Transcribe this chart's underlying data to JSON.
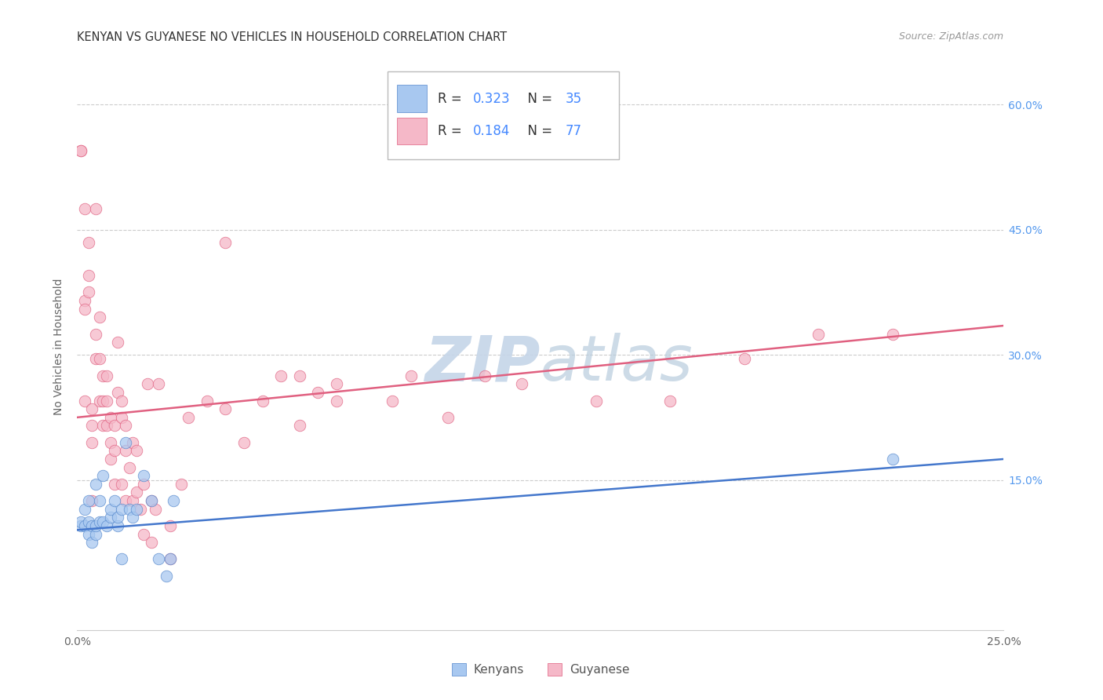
{
  "title": "KENYAN VS GUYANESE NO VEHICLES IN HOUSEHOLD CORRELATION CHART",
  "source": "Source: ZipAtlas.com",
  "ylabel": "No Vehicles in Household",
  "xlim": [
    0.0,
    0.25
  ],
  "ylim": [
    -0.03,
    0.65
  ],
  "xtick_positions": [
    0.0,
    0.05,
    0.1,
    0.15,
    0.2,
    0.25
  ],
  "xticklabels": [
    "0.0%",
    "",
    "",
    "",
    "",
    "25.0%"
  ],
  "ytick_right_positions": [
    0.15,
    0.3,
    0.45,
    0.6
  ],
  "ytick_right_labels": [
    "15.0%",
    "30.0%",
    "45.0%",
    "60.0%"
  ],
  "kenyan_color_fill": "#a8c8f0",
  "kenyan_color_edge": "#5588cc",
  "guyanese_color_fill": "#f5b8c8",
  "guyanese_color_edge": "#e06080",
  "kenyan_line_color": "#4477cc",
  "guyanese_line_color": "#e06080",
  "grid_color": "#cccccc",
  "background_color": "#ffffff",
  "title_fontsize": 10.5,
  "source_fontsize": 9,
  "tick_fontsize": 10,
  "ylabel_fontsize": 10,
  "scatter_size": 110,
  "scatter_alpha": 0.75,
  "kenyan_x": [
    0.001,
    0.001,
    0.002,
    0.002,
    0.003,
    0.003,
    0.003,
    0.004,
    0.004,
    0.005,
    0.005,
    0.005,
    0.006,
    0.006,
    0.007,
    0.007,
    0.008,
    0.009,
    0.009,
    0.01,
    0.011,
    0.011,
    0.012,
    0.012,
    0.013,
    0.014,
    0.015,
    0.016,
    0.018,
    0.02,
    0.022,
    0.024,
    0.025,
    0.026,
    0.22
  ],
  "kenyan_y": [
    0.095,
    0.1,
    0.095,
    0.115,
    0.085,
    0.1,
    0.125,
    0.075,
    0.095,
    0.085,
    0.095,
    0.145,
    0.1,
    0.125,
    0.1,
    0.155,
    0.095,
    0.105,
    0.115,
    0.125,
    0.095,
    0.105,
    0.115,
    0.055,
    0.195,
    0.115,
    0.105,
    0.115,
    0.155,
    0.125,
    0.055,
    0.035,
    0.055,
    0.125,
    0.175
  ],
  "guyanese_x": [
    0.001,
    0.001,
    0.002,
    0.002,
    0.002,
    0.002,
    0.003,
    0.003,
    0.003,
    0.004,
    0.004,
    0.004,
    0.004,
    0.005,
    0.005,
    0.005,
    0.006,
    0.006,
    0.006,
    0.007,
    0.007,
    0.007,
    0.008,
    0.008,
    0.008,
    0.009,
    0.009,
    0.009,
    0.01,
    0.01,
    0.01,
    0.011,
    0.011,
    0.012,
    0.012,
    0.012,
    0.013,
    0.013,
    0.013,
    0.014,
    0.015,
    0.015,
    0.016,
    0.016,
    0.017,
    0.018,
    0.018,
    0.019,
    0.02,
    0.02,
    0.021,
    0.022,
    0.025,
    0.025,
    0.028,
    0.03,
    0.035,
    0.04,
    0.04,
    0.045,
    0.05,
    0.055,
    0.06,
    0.065,
    0.07,
    0.085,
    0.1,
    0.12,
    0.14,
    0.16,
    0.18,
    0.2,
    0.22,
    0.06,
    0.07,
    0.09,
    0.11
  ],
  "guyanese_y": [
    0.545,
    0.545,
    0.475,
    0.365,
    0.355,
    0.245,
    0.435,
    0.395,
    0.375,
    0.235,
    0.215,
    0.195,
    0.125,
    0.475,
    0.325,
    0.295,
    0.245,
    0.345,
    0.295,
    0.215,
    0.245,
    0.275,
    0.215,
    0.275,
    0.245,
    0.225,
    0.195,
    0.175,
    0.215,
    0.185,
    0.145,
    0.255,
    0.315,
    0.245,
    0.225,
    0.145,
    0.215,
    0.185,
    0.125,
    0.165,
    0.125,
    0.195,
    0.135,
    0.185,
    0.115,
    0.085,
    0.145,
    0.265,
    0.125,
    0.075,
    0.115,
    0.265,
    0.055,
    0.095,
    0.145,
    0.225,
    0.245,
    0.435,
    0.235,
    0.195,
    0.245,
    0.275,
    0.215,
    0.255,
    0.245,
    0.245,
    0.225,
    0.265,
    0.245,
    0.245,
    0.295,
    0.325,
    0.325,
    0.275,
    0.265,
    0.275,
    0.275
  ],
  "watermark_zip_color": "#c8d8f0",
  "watermark_atlas_color": "#b0c8e8",
  "kenyan_trendline_x0": 0.0,
  "kenyan_trendline_y0": 0.09,
  "kenyan_trendline_x1": 0.25,
  "kenyan_trendline_y1": 0.175,
  "guyanese_trendline_x0": 0.0,
  "guyanese_trendline_y0": 0.225,
  "guyanese_trendline_x1": 0.25,
  "guyanese_trendline_y1": 0.335
}
